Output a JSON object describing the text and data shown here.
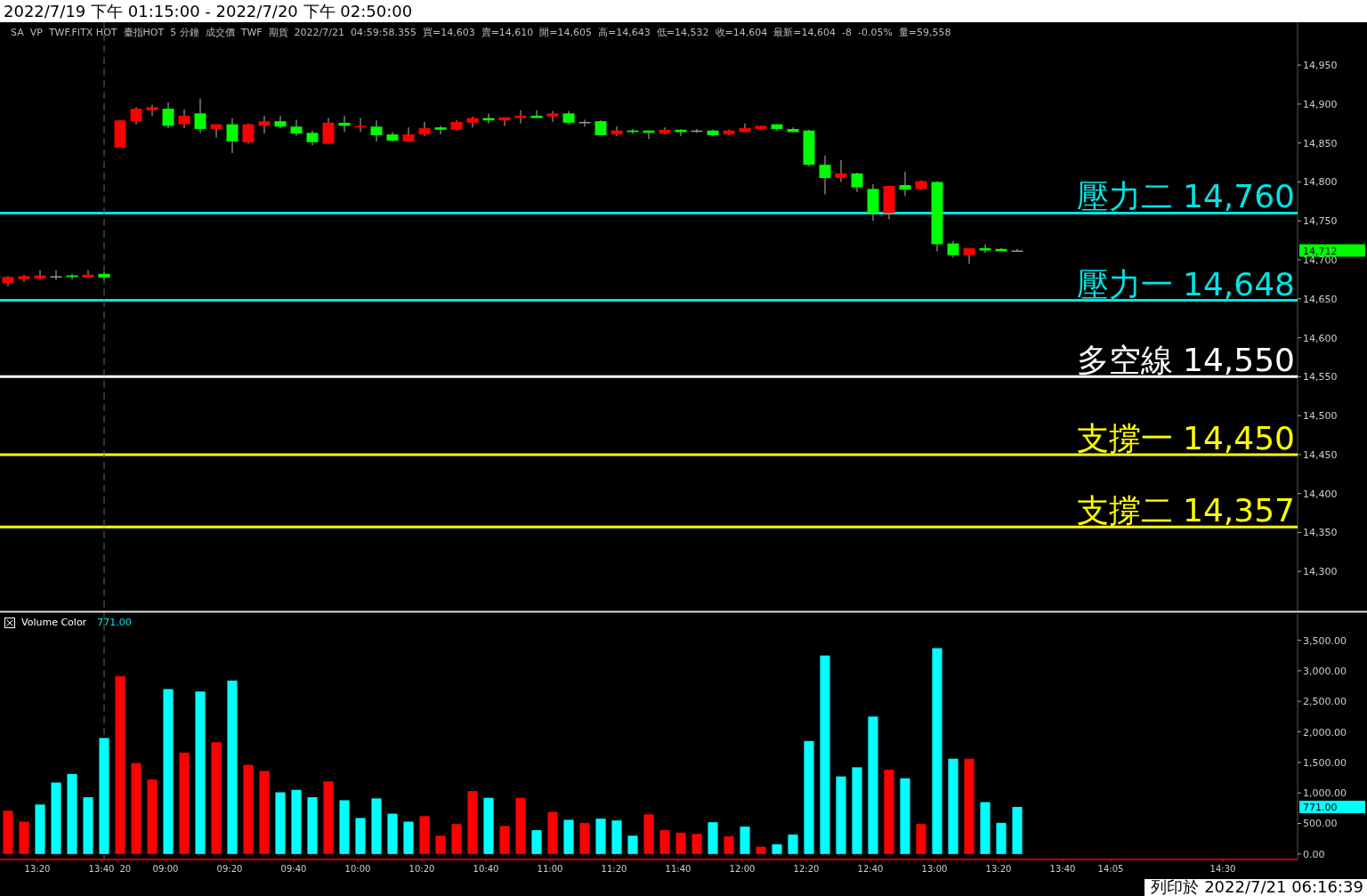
{
  "chart_data": [
    {
      "type": "candlestick",
      "title": "2022/7/19 下午 01:15:00 - 2022/7/20 下午 02:50:00",
      "annotations": [
        "SA",
        "VP",
        "TWF.FITX HOT",
        "臺指HOT",
        "5 分鐘",
        "成交價",
        "TWF",
        "期貨",
        "2022/7/21",
        "04:59:58.355",
        "買=14,603",
        "賣=14,610",
        "開=14,605",
        "高=14,643",
        "低=14,532",
        "收=14,604",
        "最新=14,604",
        "-8",
        "-0.05%",
        "量=59,558",
        "14,712"
      ],
      "categories": [
        null,
        null,
        null,
        null,
        null,
        null,
        null,
        null,
        null,
        null,
        null,
        null,
        null,
        null,
        null,
        null,
        null,
        null,
        null,
        null,
        null,
        null,
        null,
        null,
        null,
        null,
        null,
        null,
        null,
        null,
        null,
        null,
        null,
        null,
        null,
        null,
        null,
        null,
        null,
        null,
        null,
        null,
        null,
        null,
        null,
        null,
        null,
        null,
        null,
        null,
        null,
        null,
        null,
        null,
        null,
        null,
        null,
        null,
        null,
        null,
        null,
        null,
        null,
        null,
        null,
        null,
        null,
        null,
        null,
        null,
        null,
        null,
        null,
        null,
        null,
        null,
        null,
        null,
        null,
        null,
        null
      ],
      "ohlc": [
        [
          14670,
          14679,
          14666,
          14678
        ],
        [
          14675,
          14681,
          14672,
          14679
        ],
        [
          14676,
          14687,
          14675,
          14680
        ],
        [
          14679,
          14687,
          14674,
          14679
        ],
        [
          14680,
          14682,
          14675,
          14678
        ],
        [
          14677,
          14687,
          14677,
          14681
        ],
        [
          14682,
          14684,
          14674,
          14677
        ],
        [
          14844,
          14879,
          14844,
          14879
        ],
        [
          14878,
          14896,
          14874,
          14894
        ],
        [
          14892,
          14899,
          14885,
          14896
        ],
        [
          14894,
          14902,
          14869,
          14872
        ],
        [
          14874,
          14893,
          14869,
          14885
        ],
        [
          14888,
          14907,
          14863,
          14868
        ],
        [
          14868,
          14874,
          14857,
          14874
        ],
        [
          14874,
          14882,
          14837,
          14852
        ],
        [
          14851,
          14875,
          14849,
          14874
        ],
        [
          14872,
          14885,
          14862,
          14878
        ],
        [
          14878,
          14885,
          14869,
          14871
        ],
        [
          14871,
          14880,
          14859,
          14862
        ],
        [
          14863,
          14866,
          14847,
          14851
        ],
        [
          14849,
          14882,
          14849,
          14876
        ],
        [
          14876,
          14885,
          14864,
          14872
        ],
        [
          14870,
          14882,
          14864,
          14872
        ],
        [
          14871,
          14879,
          14852,
          14860
        ],
        [
          14861,
          14864,
          14852,
          14853
        ],
        [
          14852,
          14870,
          14852,
          14861
        ],
        [
          14861,
          14877,
          14859,
          14869
        ],
        [
          14870,
          14872,
          14861,
          14867
        ],
        [
          14867,
          14879,
          14866,
          14877
        ],
        [
          14876,
          14884,
          14870,
          14882
        ],
        [
          14882,
          14888,
          14875,
          14879
        ],
        [
          14879,
          14883,
          14872,
          14883
        ],
        [
          14882,
          14892,
          14875,
          14885
        ],
        [
          14885,
          14892,
          14882,
          14882
        ],
        [
          14884,
          14891,
          14877,
          14888
        ],
        [
          14888,
          14891,
          14874,
          14876
        ],
        [
          14877,
          14880,
          14871,
          14877
        ],
        [
          14878,
          14879,
          14860,
          14860
        ],
        [
          14861,
          14871,
          14859,
          14866
        ],
        [
          14866,
          14868,
          14862,
          14864
        ],
        [
          14866,
          14866,
          14855,
          14863
        ],
        [
          14862,
          14870,
          14861,
          14867
        ],
        [
          14867,
          14868,
          14859,
          14864
        ],
        [
          14866,
          14868,
          14863,
          14866
        ],
        [
          14866,
          14867,
          14859,
          14860
        ],
        [
          14861,
          14867,
          14860,
          14866
        ],
        [
          14864,
          14875,
          14864,
          14869
        ],
        [
          14868,
          14872,
          14867,
          14872
        ],
        [
          14874,
          14874,
          14866,
          14868
        ],
        [
          14868,
          14870,
          14864,
          14864
        ],
        [
          14866,
          14867,
          14820,
          14822
        ],
        [
          14822,
          14834,
          14784,
          14805
        ],
        [
          14805,
          14828,
          14800,
          14811
        ],
        [
          14811,
          14812,
          14787,
          14793
        ],
        [
          14791,
          14797,
          14750,
          14760
        ],
        [
          14760,
          14795,
          14752,
          14795
        ],
        [
          14796,
          14813,
          14782,
          14790
        ],
        [
          14791,
          14802,
          14790,
          14801
        ],
        [
          14800,
          14801,
          14711,
          14720
        ],
        [
          14721,
          14724,
          14703,
          14706
        ],
        [
          14706,
          14715,
          14695,
          14715
        ],
        [
          14715,
          14720,
          14709,
          14712
        ],
        [
          14714,
          14715,
          14711,
          14711
        ],
        [
          14712,
          14714,
          14711,
          14712
        ],
        null,
        null,
        null,
        null,
        null,
        null,
        null,
        null,
        null,
        null,
        null,
        null,
        null,
        null,
        null,
        null,
        null
      ],
      "colors": [
        "#ff0000",
        "#ff0000",
        "#ff0000",
        "#999999",
        "#00ff00",
        "#ff0000",
        "#00ff00",
        "#ff0000",
        "#ff0000",
        "#ff0000",
        "#00ff00",
        "#ff0000",
        "#00ff00",
        "#ff0000",
        "#00ff00",
        "#ff0000",
        "#ff0000",
        "#00ff00",
        "#00ff00",
        "#00ff00",
        "#ff0000",
        "#00ff00",
        "#ff0000",
        "#00ff00",
        "#00ff00",
        "#ff0000",
        "#ff0000",
        "#00ff00",
        "#ff0000",
        "#ff0000",
        "#00ff00",
        "#ff0000",
        "#ff0000",
        "#00ff00",
        "#ff0000",
        "#00ff00",
        "#999999",
        "#00ff00",
        "#ff0000",
        "#00ff00",
        "#00ff00",
        "#ff0000",
        "#00ff00",
        "#999999",
        "#00ff00",
        "#ff0000",
        "#ff0000",
        "#ff0000",
        "#00ff00",
        "#00ff00",
        "#00ff00",
        "#00ff00",
        "#ff0000",
        "#00ff00",
        "#00ff00",
        "#ff0000",
        "#00ff00",
        "#ff0000",
        "#00ff00",
        "#00ff00",
        "#ff0000",
        "#00ff00",
        "#00ff00",
        "#999999",
        null,
        null,
        null,
        null,
        null,
        null,
        null,
        null,
        null,
        null,
        null,
        null,
        null,
        null,
        null,
        null,
        null
      ],
      "ylim": [
        14250,
        15005
      ],
      "yticks": [
        {
          "value": 14300,
          "label": "14,300"
        },
        {
          "value": 14350,
          "label": "14,350"
        },
        {
          "value": 14400,
          "label": "14,400"
        },
        {
          "value": 14450,
          "label": "14,450"
        },
        {
          "value": 14500,
          "label": "14,500"
        },
        {
          "value": 14550,
          "label": "14,550"
        },
        {
          "value": 14600,
          "label": "14,600"
        },
        {
          "value": 14650,
          "label": "14,650"
        },
        {
          "value": 14700,
          "label": "14,700"
        },
        {
          "value": 14750,
          "label": "14,750"
        },
        {
          "value": 14800,
          "label": "14,800"
        },
        {
          "value": 14850,
          "label": "14,850"
        },
        {
          "value": 14900,
          "label": "14,900"
        },
        {
          "value": 14950,
          "label": "14,950"
        }
      ],
      "ref_lines": [
        {
          "axis": "y",
          "value": 14760,
          "label": "壓力二 14,760",
          "color": "#00e5e5"
        },
        {
          "axis": "y",
          "value": 14648,
          "label": "壓力一 14,648",
          "color": "#00e5e5"
        },
        {
          "axis": "y",
          "value": 14550,
          "label": "多空線 14,550",
          "color": "#ffffff"
        },
        {
          "axis": "y",
          "value": 14450,
          "label": "支撐一 14,450",
          "color": "#ffff00"
        },
        {
          "axis": "y",
          "value": 14357,
          "label": "支撐二 14,357",
          "color": "#ffff00"
        }
      ],
      "tick_labels": "y"
    },
    {
      "type": "bar",
      "categories": [
        null,
        null,
        "13:20",
        null,
        null,
        null,
        "13:40",
        "20",
        null,
        null,
        "09:00",
        null,
        null,
        null,
        "09:20",
        null,
        null,
        null,
        "09:40",
        null,
        null,
        null,
        "10:00",
        null,
        null,
        null,
        "10:20",
        null,
        null,
        null,
        "10:40",
        null,
        null,
        null,
        "11:00",
        null,
        null,
        null,
        "11:20",
        null,
        null,
        null,
        "11:40",
        null,
        null,
        null,
        "12:00",
        null,
        null,
        null,
        "12:20",
        null,
        null,
        null,
        "12:40",
        null,
        null,
        null,
        "13:00",
        null,
        null,
        null,
        "13:20",
        null,
        null,
        null,
        "13:40",
        null,
        null,
        "14:05",
        null,
        null,
        null,
        null,
        null,
        null,
        "14:30",
        null,
        null,
        null,
        null
      ],
      "series": [
        {
          "name": "Volume Color",
          "values": [
            710,
            530,
            810,
            1170,
            1310,
            930,
            1900,
            2910,
            1490,
            1220,
            2700,
            1660,
            2660,
            1830,
            2840,
            1460,
            1360,
            1010,
            1050,
            930,
            1190,
            880,
            590,
            910,
            660,
            530,
            620,
            300,
            490,
            1030,
            920,
            460,
            920,
            390,
            690,
            560,
            510,
            580,
            550,
            300,
            650,
            390,
            350,
            330,
            520,
            290,
            450,
            120,
            160,
            320,
            1850,
            3250,
            1270,
            1420,
            2250,
            1380,
            1240,
            490,
            3370,
            1560,
            1560,
            850,
            510,
            771,
            null,
            null,
            null,
            null,
            null,
            null,
            null,
            null,
            null,
            null,
            null,
            null,
            null,
            null,
            null,
            null,
            null
          ],
          "colors": [
            "#ff0000",
            "#ff0000",
            "#00ffff",
            "#00ffff",
            "#00ffff",
            "#00ffff",
            "#00ffff",
            "#ff0000",
            "#ff0000",
            "#ff0000",
            "#00ffff",
            "#ff0000",
            "#00ffff",
            "#ff0000",
            "#00ffff",
            "#ff0000",
            "#ff0000",
            "#00ffff",
            "#00ffff",
            "#00ffff",
            "#ff0000",
            "#00ffff",
            "#00ffff",
            "#00ffff",
            "#00ffff",
            "#00ffff",
            "#ff0000",
            "#ff0000",
            "#ff0000",
            "#ff0000",
            "#00ffff",
            "#ff0000",
            "#ff0000",
            "#00ffff",
            "#ff0000",
            "#00ffff",
            "#ff0000",
            "#00ffff",
            "#00ffff",
            "#00ffff",
            "#ff0000",
            "#ff0000",
            "#ff0000",
            "#ff0000",
            "#00ffff",
            "#ff0000",
            "#00ffff",
            "#ff0000",
            "#00ffff",
            "#00ffff",
            "#00ffff",
            "#00ffff",
            "#00ffff",
            "#00ffff",
            "#00ffff",
            "#ff0000",
            "#00ffff",
            "#ff0000",
            "#00ffff",
            "#00ffff",
            "#ff0000",
            "#00ffff",
            "#00ffff",
            "#00ffff",
            null,
            null,
            null,
            null,
            null,
            null,
            null,
            null,
            null,
            null,
            null,
            null,
            null,
            null,
            null,
            null,
            null
          ]
        }
      ],
      "ylim": [
        -90,
        3930
      ],
      "yticks": [
        {
          "value": 0,
          "label": "0.00"
        },
        {
          "value": 500,
          "label": "500.00"
        },
        {
          "value": 1000,
          "label": "1,000.00"
        },
        {
          "value": 1500,
          "label": "1,500.00"
        },
        {
          "value": 2000,
          "label": "2,000.00"
        },
        {
          "value": 2500,
          "label": "2,500.00"
        },
        {
          "value": 3000,
          "label": "3,000.00"
        },
        {
          "value": 3500,
          "label": "3,500.00"
        }
      ],
      "annotations": [
        "771.00",
        "771.00",
        "列印於 2022/7/21 06:16:39"
      ],
      "ref_lines": [
        {
          "axis": "x",
          "value": "13:40",
          "color": "#666666",
          "line_style": "dashed"
        }
      ],
      "legend": "top left"
    }
  ]
}
